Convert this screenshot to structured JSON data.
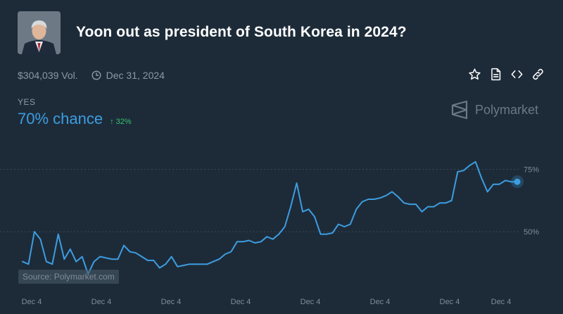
{
  "market": {
    "title": "Yoon out as president of South Korea in 2024?",
    "volume": "$304,039 Vol.",
    "end_date": "Dec 31, 2024"
  },
  "outcome": {
    "label": "YES",
    "chance": "70% chance",
    "delta": "↑ 32%"
  },
  "brand": {
    "name": "Polymarket"
  },
  "source": "Source: Polymarket.com",
  "icons": {
    "avatar": "portrait-photo",
    "actions": [
      "star-icon",
      "document-icon",
      "embed-code-icon",
      "link-icon"
    ],
    "clock": "clock-icon",
    "logo": "polymarket-logo-icon"
  },
  "colors": {
    "background": "#1d2b39",
    "line": "#3d9de0",
    "up": "#35c26c",
    "muted": "#8b98a6"
  },
  "chart_data": {
    "type": "line",
    "ylim": [
      30,
      85
    ],
    "y_ticks": [
      {
        "label": "50%",
        "value": 50
      },
      {
        "label": "75%",
        "value": 75
      }
    ],
    "x_ticks": [
      "Dec 4",
      "Dec 4",
      "Dec 4",
      "Dec 4",
      "Dec 4",
      "Dec 4",
      "Dec 4",
      "Dec 4"
    ],
    "series": [
      {
        "values": [
          38,
          37,
          50,
          47,
          38,
          37,
          49,
          39,
          43,
          38,
          40,
          33,
          38,
          40,
          39.5,
          39,
          39,
          44.5,
          42,
          41.5,
          40,
          38.5,
          38.5,
          35.5,
          37,
          40,
          36,
          36.5,
          37,
          37,
          37,
          37,
          38,
          39,
          41,
          42,
          46,
          46,
          46.5,
          45.5,
          46,
          48,
          47,
          49,
          52,
          60,
          69.5,
          58,
          59,
          56,
          49,
          49,
          49.5,
          53,
          52,
          53,
          59,
          62,
          63,
          63,
          63.5,
          64.5,
          66,
          64,
          61.5,
          61,
          61,
          58,
          60,
          60,
          61.5,
          61.5,
          62.5,
          74,
          74.5,
          76.5,
          78,
          71.5,
          66,
          69,
          69,
          70.5,
          70,
          70
        ]
      }
    ]
  }
}
